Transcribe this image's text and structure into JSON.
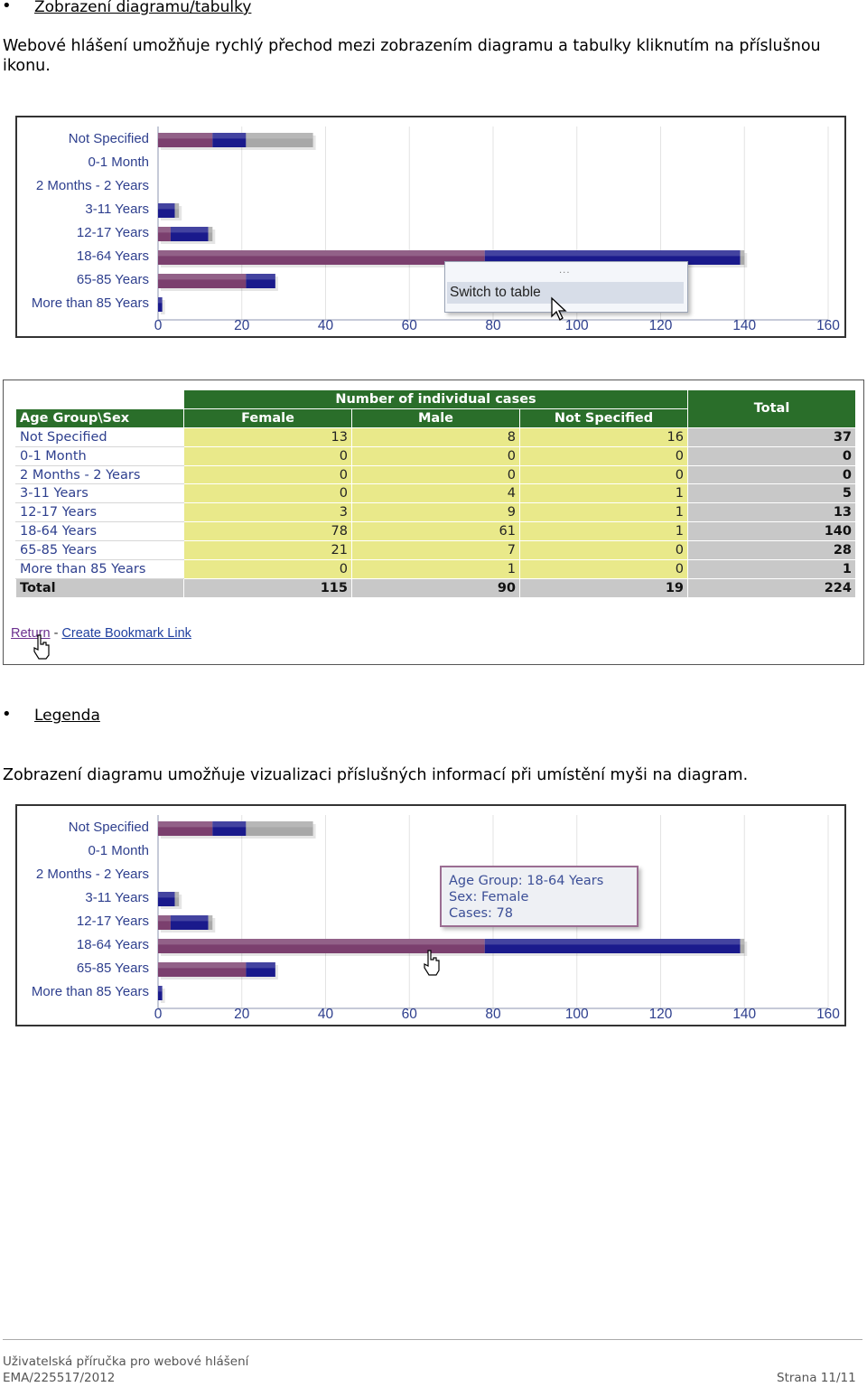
{
  "section1": {
    "heading": "Zobrazení diagramu/tabulky",
    "paragraph_line1": "Webové hlášení umožňuje rychlý přechod mezi zobrazením diagramu a tabulky kliknutím na příslušnou",
    "paragraph_line2": "ikonu."
  },
  "section2": {
    "heading": "Legenda",
    "paragraph": "Zobrazení diagramu umožňuje vizualizaci příslušných informací při umístění myši na diagram."
  },
  "context_menu": {
    "dots": "...",
    "item": "Switch to table"
  },
  "tooltip": {
    "line1": "Age Group: 18-64 Years",
    "line2": "Sex: Female",
    "line3": "Cases: 78"
  },
  "table": {
    "group_header": "Number of individual cases",
    "row_header": "Age Group\\Sex",
    "columns": [
      "Female",
      "Male",
      "Not Specified"
    ],
    "total_header": "Total",
    "rows": [
      {
        "label": "Not Specified",
        "values": [
          "13",
          "8",
          "16"
        ],
        "total": "37"
      },
      {
        "label": "0-1 Month",
        "values": [
          "0",
          "0",
          "0"
        ],
        "total": "0"
      },
      {
        "label": "2 Months - 2 Years",
        "values": [
          "0",
          "0",
          "0"
        ],
        "total": "0"
      },
      {
        "label": "3-11 Years",
        "values": [
          "0",
          "4",
          "1"
        ],
        "total": "5"
      },
      {
        "label": "12-17 Years",
        "values": [
          "3",
          "9",
          "1"
        ],
        "total": "13"
      },
      {
        "label": "18-64 Years",
        "values": [
          "78",
          "61",
          "1"
        ],
        "total": "140"
      },
      {
        "label": "65-85 Years",
        "values": [
          "21",
          "7",
          "0"
        ],
        "total": "28"
      },
      {
        "label": "More than 85 Years",
        "values": [
          "0",
          "1",
          "0"
        ],
        "total": "1"
      }
    ],
    "total_row": {
      "label": "Total",
      "values": [
        "115",
        "90",
        "19"
      ],
      "total": "224"
    },
    "links": {
      "return": "Return",
      "separator": "-",
      "bookmark": "Create Bookmark Link"
    }
  },
  "footer": {
    "line1": "Uživatelská příručka pro webové hlášení",
    "line2": "EMA/225517/2012",
    "page": "Strana 11/11"
  },
  "colors": {
    "female": "#7b3f6e",
    "male": "#1a1a8c",
    "not_specified": "#a8a8a8",
    "table_header": "#2a6e2a",
    "table_cells": "#e9e98a"
  },
  "chart_data": [
    {
      "type": "bar",
      "orientation": "horizontal",
      "stacked": true,
      "categories": [
        "Not Specified",
        "0-1 Month",
        "2 Months - 2 Years",
        "3-11 Years",
        "12-17 Years",
        "18-64 Years",
        "65-85 Years",
        "More than 85 Years"
      ],
      "series": [
        {
          "values": [
            13,
            0,
            0,
            0,
            3,
            78,
            21,
            0
          ],
          "color": "#7b3f6e"
        },
        {
          "values": [
            8,
            0,
            0,
            4,
            9,
            61,
            7,
            1
          ],
          "color": "#1a1a8c"
        },
        {
          "values": [
            16,
            0,
            0,
            1,
            1,
            1,
            0,
            0
          ],
          "color": "#a8a8a8"
        }
      ],
      "xticks": [
        "0",
        "20",
        "40",
        "60",
        "80",
        "100",
        "120",
        "140",
        "160"
      ],
      "xlim": [
        0,
        160
      ],
      "grid": true
    },
    {
      "type": "bar",
      "orientation": "horizontal",
      "stacked": true,
      "categories": [
        "Not Specified",
        "0-1 Month",
        "2 Months - 2 Years",
        "3-11 Years",
        "12-17 Years",
        "18-64 Years",
        "65-85 Years",
        "More than 85 Years"
      ],
      "series": [
        {
          "values": [
            13,
            0,
            0,
            0,
            3,
            78,
            21,
            0
          ],
          "color": "#7b3f6e"
        },
        {
          "values": [
            8,
            0,
            0,
            4,
            9,
            61,
            7,
            1
          ],
          "color": "#1a1a8c"
        },
        {
          "values": [
            16,
            0,
            0,
            1,
            1,
            1,
            0,
            0
          ],
          "color": "#a8a8a8"
        }
      ],
      "xticks": [
        "0",
        "20",
        "40",
        "60",
        "80",
        "100",
        "120",
        "140",
        "160"
      ],
      "xlim": [
        0,
        160
      ],
      "grid": true
    }
  ]
}
